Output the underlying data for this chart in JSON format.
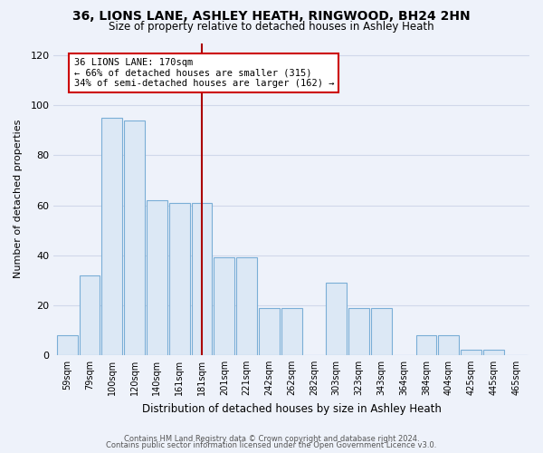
{
  "title": "36, LIONS LANE, ASHLEY HEATH, RINGWOOD, BH24 2HN",
  "subtitle": "Size of property relative to detached houses in Ashley Heath",
  "xlabel": "Distribution of detached houses by size in Ashley Heath",
  "ylabel": "Number of detached properties",
  "bar_color": "#dce8f5",
  "bar_edge_color": "#7aaed6",
  "bin_labels": [
    "59sqm",
    "79sqm",
    "100sqm",
    "120sqm",
    "140sqm",
    "161sqm",
    "181sqm",
    "201sqm",
    "221sqm",
    "242sqm",
    "262sqm",
    "282sqm",
    "303sqm",
    "323sqm",
    "343sqm",
    "364sqm",
    "384sqm",
    "404sqm",
    "425sqm",
    "445sqm",
    "465sqm"
  ],
  "bar_heights": [
    8,
    32,
    95,
    94,
    62,
    61,
    61,
    39,
    39,
    19,
    19,
    0,
    29,
    19,
    19,
    0,
    8,
    8,
    2,
    2,
    0
  ],
  "vline_color": "#aa0000",
  "annotation_text": "36 LIONS LANE: 170sqm\n← 66% of detached houses are smaller (315)\n34% of semi-detached houses are larger (162) →",
  "annotation_box_color": "#ffffff",
  "annotation_box_edgecolor": "#cc0000",
  "ylim": [
    0,
    125
  ],
  "yticks": [
    0,
    20,
    40,
    60,
    80,
    100,
    120
  ],
  "footer1": "Contains HM Land Registry data © Crown copyright and database right 2024.",
  "footer2": "Contains public sector information licensed under the Open Government Licence v3.0.",
  "background_color": "#eef2fa",
  "grid_color": "#d0d8ea"
}
